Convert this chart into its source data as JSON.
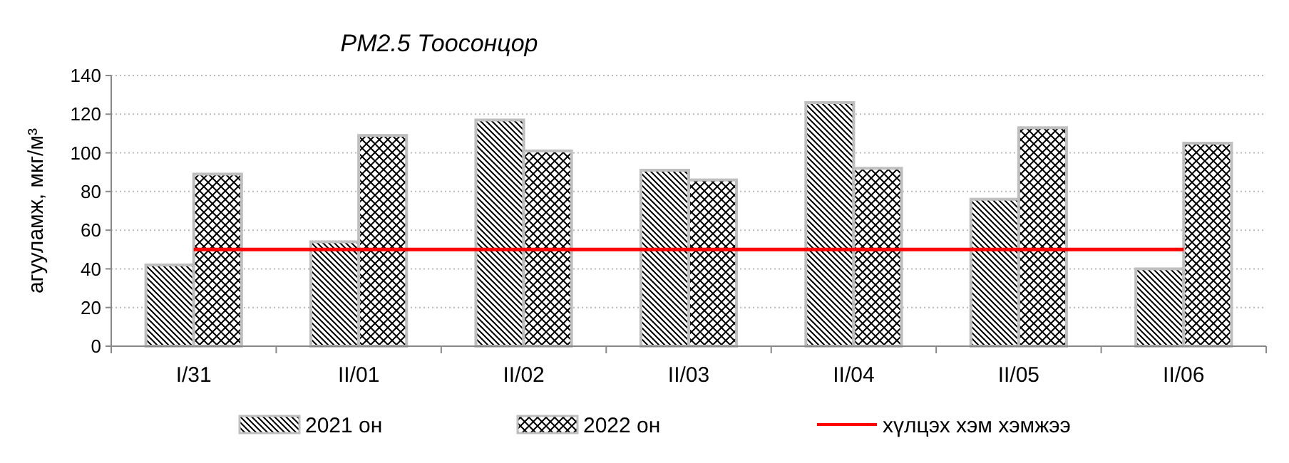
{
  "chart_data": {
    "type": "bar",
    "title": "PM2.5 Тоосонцор",
    "ylabel": "агууламж, мкг/м³",
    "categories": [
      "I/31",
      "II/01",
      "II/02",
      "II/03",
      "II/04",
      "II/05",
      "II/06"
    ],
    "series": [
      {
        "name": "2021 он",
        "color": "#bfbfbf",
        "values": [
          42,
          54,
          117,
          91,
          126,
          76,
          40
        ]
      },
      {
        "name": "2022 он",
        "color": "#bfbfbf",
        "values": [
          89,
          109,
          101,
          86,
          92,
          113,
          105
        ]
      },
      {
        "name": "хүлцэх хэм хэмжээ",
        "type": "line",
        "color": "#ff0000",
        "values": [
          50,
          50,
          50,
          50,
          50,
          50,
          50
        ]
      }
    ],
    "ylim": [
      0,
      140
    ],
    "yticks": [
      0,
      20,
      40,
      60,
      80,
      100,
      120,
      140
    ],
    "grid": "y",
    "legend": "bottom"
  }
}
